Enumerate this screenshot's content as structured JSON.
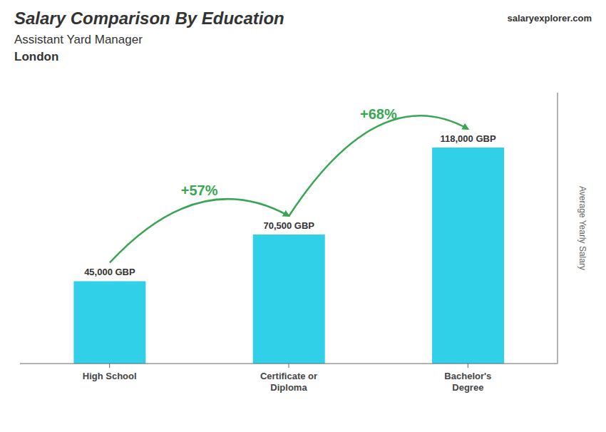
{
  "chart_data": {
    "type": "bar",
    "title": "Salary Comparison By Education",
    "subtitle": "Assistant Yard Manager",
    "categories": [
      "High School",
      "Certificate or\nDiploma",
      "Bachelor's\nDegree"
    ],
    "values": [
      45000,
      70500,
      118000
    ],
    "value_labels": [
      "45,000 GBP",
      "70,500 GBP",
      "118,000 GBP"
    ],
    "data_labels": true,
    "color": "#30d0e8",
    "ylim": [
      0,
      148000
    ],
    "ylabel": "Average Yearly Salary",
    "tick_labels": "x",
    "grid": false,
    "annotations": [
      {
        "text": "London"
      },
      {
        "text": "salaryexplorer.com"
      },
      {
        "text": "+57%",
        "between": [
          0,
          1
        ]
      },
      {
        "text": "+68%",
        "between": [
          1,
          2
        ]
      }
    ]
  }
}
